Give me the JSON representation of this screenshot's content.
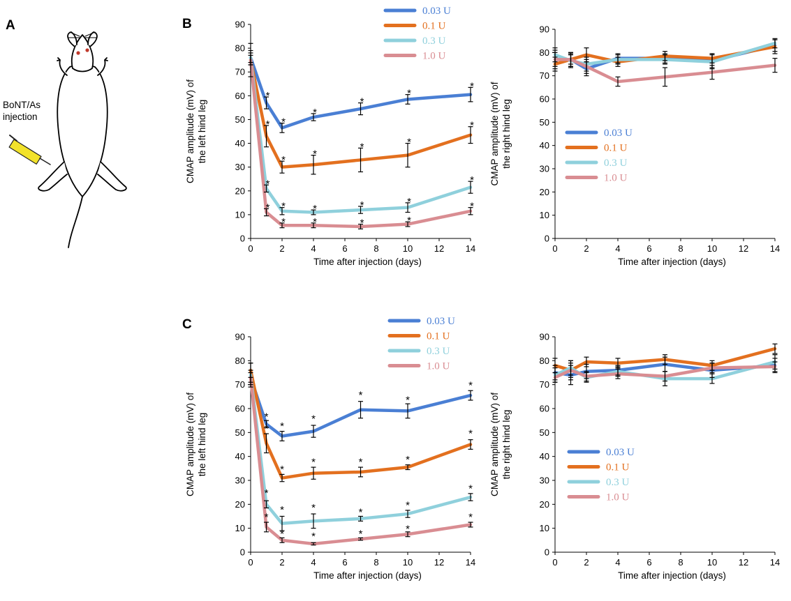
{
  "panel_labels": {
    "a": "A",
    "b": "B",
    "c": "C"
  },
  "illustration": {
    "label_line1": "BoNT/As",
    "label_line2": "injection"
  },
  "colors": {
    "0.03 U": "#4a7fd4",
    "0.1 U": "#e3701f",
    "0.3 U": "#8fd0dc",
    "1.0 U": "#d98d92"
  },
  "chart_data": [
    {
      "id": "b-left",
      "type": "line",
      "ylabel_line1": "CMAP amplitude (mV) of",
      "ylabel_line2": "the left hind leg",
      "xlabel": "Time after injection (days)",
      "ylim": [
        0,
        90
      ],
      "xlim": [
        0,
        14
      ],
      "yticks": [
        0,
        10,
        20,
        30,
        40,
        50,
        60,
        70,
        80,
        90
      ],
      "xticks": [
        0,
        2,
        4,
        6,
        8,
        10,
        12,
        14
      ],
      "x": [
        0,
        1,
        2,
        4,
        7,
        10,
        14
      ],
      "legend_position": "top",
      "series": [
        {
          "name": "0.03 U",
          "values": [
            76,
            57,
            46.5,
            51,
            54.5,
            58.5,
            60.5
          ],
          "errors": [
            3,
            2.5,
            2,
            1.5,
            2.5,
            2,
            3
          ],
          "stars": [
            false,
            true,
            true,
            true,
            true,
            true,
            true
          ]
        },
        {
          "name": "0.1 U",
          "values": [
            75,
            43,
            30,
            31,
            33,
            35,
            43.5
          ],
          "errors": [
            7,
            4.5,
            2.5,
            4,
            5,
            5,
            3.5
          ],
          "stars": [
            false,
            true,
            true,
            true,
            true,
            true,
            true
          ]
        },
        {
          "name": "0.3 U",
          "values": [
            76,
            21,
            11.5,
            11,
            12,
            13,
            21.5
          ],
          "errors": [
            2,
            1.5,
            1.5,
            1,
            1.5,
            2,
            2.5
          ],
          "stars": [
            false,
            true,
            true,
            true,
            true,
            true,
            true
          ]
        },
        {
          "name": "1.0 U",
          "values": [
            75,
            11,
            5.5,
            5.5,
            5,
            6,
            11.5
          ],
          "errors": [
            2,
            1.5,
            1,
            1,
            1,
            1,
            1.5
          ],
          "stars": [
            false,
            true,
            true,
            true,
            true,
            true,
            true
          ]
        }
      ]
    },
    {
      "id": "b-right",
      "type": "line",
      "ylabel_line1": "CMAP amplitude (mV) of",
      "ylabel_line2": "the right hind leg",
      "xlabel": "Time after injection (days)",
      "ylim": [
        0,
        90
      ],
      "xlim": [
        0,
        14
      ],
      "yticks": [
        0,
        10,
        20,
        30,
        40,
        50,
        60,
        70,
        80,
        90
      ],
      "xticks": [
        0,
        2,
        4,
        6,
        8,
        10,
        12,
        14
      ],
      "x": [
        0,
        1,
        2,
        4,
        7,
        10,
        14
      ],
      "legend_position": "middle-right",
      "series": [
        {
          "name": "0.03 U",
          "values": [
            77,
            77,
            73,
            77.5,
            77.5,
            76.5,
            83
          ],
          "errors": [
            4,
            3,
            3,
            2,
            2,
            3,
            2.5
          ]
        },
        {
          "name": "0.1 U",
          "values": [
            75,
            77,
            79,
            76,
            78.5,
            77.5,
            82.5
          ],
          "errors": [
            3,
            3,
            3,
            2,
            2,
            2,
            3
          ]
        },
        {
          "name": "0.3 U",
          "values": [
            79,
            76.5,
            75,
            77,
            77,
            76,
            84
          ],
          "errors": [
            3,
            3,
            3,
            2,
            2,
            3,
            2
          ]
        },
        {
          "name": "1.0 U",
          "values": [
            77,
            77,
            74,
            67.5,
            69.5,
            71.5,
            74.5
          ],
          "errors": [
            3,
            2,
            3,
            2,
            4,
            3,
            3
          ]
        }
      ]
    },
    {
      "id": "c-left",
      "type": "line",
      "ylabel_line1": "CMAP amplitude (mV) of",
      "ylabel_line2": "the left hind leg",
      "xlabel": "Time after injection (days)",
      "ylim": [
        0,
        90
      ],
      "xlim": [
        0,
        14
      ],
      "yticks": [
        0,
        10,
        20,
        30,
        40,
        50,
        60,
        70,
        80,
        90
      ],
      "xticks": [
        0,
        2,
        4,
        6,
        8,
        10,
        12,
        14
      ],
      "x": [
        0,
        1,
        2,
        4,
        7,
        10,
        14
      ],
      "legend_position": "top",
      "series": [
        {
          "name": "0.03 U",
          "values": [
            73,
            53.5,
            48.5,
            50.5,
            59.5,
            59,
            65.5
          ],
          "errors": [
            3,
            1.5,
            2,
            2.5,
            3.5,
            3,
            2
          ]
        },
        {
          "name": "0.1 U",
          "values": [
            76,
            45.5,
            31,
            33,
            33.5,
            35.5,
            45
          ],
          "errors": [
            3,
            4,
            1.5,
            2.5,
            2,
            1,
            2
          ]
        },
        {
          "name": "0.3 U",
          "values": [
            74,
            20,
            12,
            13,
            14,
            16,
            23
          ],
          "errors": [
            5,
            1.5,
            3,
            3,
            1,
            1.5,
            1.5
          ]
        },
        {
          "name": "1.0 U",
          "values": [
            73,
            10.5,
            5,
            3.5,
            5.5,
            7.5,
            11.5
          ],
          "errors": [
            2,
            2,
            1,
            0.5,
            0.5,
            1,
            1
          ]
        }
      ],
      "stars": [
        {
          "x": 1,
          "y": 57
        },
        {
          "x": 1,
          "y": 52
        },
        {
          "x": 1,
          "y": 25
        },
        {
          "x": 1,
          "y": 15
        },
        {
          "x": 2,
          "y": 53
        },
        {
          "x": 2,
          "y": 35
        },
        {
          "x": 2,
          "y": 18
        },
        {
          "x": 2,
          "y": 8
        },
        {
          "x": 4,
          "y": 56
        },
        {
          "x": 4,
          "y": 38
        },
        {
          "x": 4,
          "y": 19
        },
        {
          "x": 4,
          "y": 7
        },
        {
          "x": 7,
          "y": 66
        },
        {
          "x": 7,
          "y": 38
        },
        {
          "x": 7,
          "y": 17
        },
        {
          "x": 7,
          "y": 8
        },
        {
          "x": 10,
          "y": 64
        },
        {
          "x": 10,
          "y": 39
        },
        {
          "x": 10,
          "y": 20
        },
        {
          "x": 10,
          "y": 10
        },
        {
          "x": 14,
          "y": 70
        },
        {
          "x": 14,
          "y": 50
        },
        {
          "x": 14,
          "y": 27
        },
        {
          "x": 14,
          "y": 15
        }
      ]
    },
    {
      "id": "c-right",
      "type": "line",
      "ylabel_line1": "CMAP amplitude (mV) of",
      "ylabel_line2": "the right hind leg",
      "xlabel": "Time after injection (days)",
      "ylim": [
        0,
        90
      ],
      "xlim": [
        0,
        14
      ],
      "yticks": [
        0,
        10,
        20,
        30,
        40,
        50,
        60,
        70,
        80,
        90
      ],
      "xticks": [
        0,
        2,
        4,
        6,
        8,
        10,
        12,
        14
      ],
      "x": [
        0,
        1,
        2,
        4,
        7,
        10,
        14
      ],
      "legend_position": "bottom-right",
      "series": [
        {
          "name": "0.03 U",
          "values": [
            75,
            74,
            75.5,
            76,
            78.5,
            76,
            78
          ],
          "errors": [
            3,
            4,
            3,
            2,
            3,
            3,
            3
          ]
        },
        {
          "name": "0.1 U",
          "values": [
            78,
            76,
            79.5,
            79,
            80.5,
            78,
            85
          ],
          "errors": [
            3,
            4,
            2,
            2,
            2,
            2,
            2
          ]
        },
        {
          "name": "0.3 U",
          "values": [
            74,
            77,
            73,
            75.5,
            72.5,
            72.5,
            79.5
          ],
          "errors": [
            3,
            3,
            2,
            2,
            3,
            2,
            3
          ]
        },
        {
          "name": "1.0 U",
          "values": [
            73,
            76,
            73.5,
            74.5,
            73.5,
            77,
            77.5
          ],
          "errors": [
            2,
            3,
            2,
            2,
            2,
            2,
            2
          ]
        }
      ]
    }
  ]
}
